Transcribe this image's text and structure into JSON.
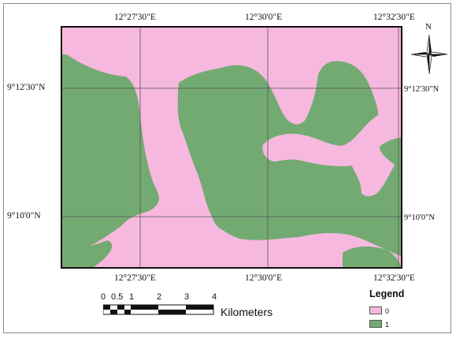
{
  "map": {
    "top_lon_labels": [
      "12°27'30\"E",
      "12°30'0\"E",
      "12°32'30\"E"
    ],
    "bottom_lon_labels": [
      "12°27'30\"E",
      "12°30'0\"E",
      "12°32'30\"E"
    ],
    "left_lat_labels": [
      "9°12'30\"N",
      "9°10'0\"N"
    ],
    "right_lat_labels": [
      "9°12'30\"N",
      "9°10'0\"N"
    ],
    "north_label": "N",
    "colors": {
      "class_0": "#f7b8df",
      "class_1": "#73aa72",
      "grid": "#555555"
    }
  },
  "scale": {
    "ticks": [
      "0",
      "0.5",
      "1",
      "2",
      "3",
      "4"
    ],
    "unit": "Kilometers"
  },
  "legend": {
    "title": "Legend",
    "items": [
      {
        "label": "0",
        "color": "#f7b8df"
      },
      {
        "label": "1",
        "color": "#73aa72"
      }
    ]
  }
}
